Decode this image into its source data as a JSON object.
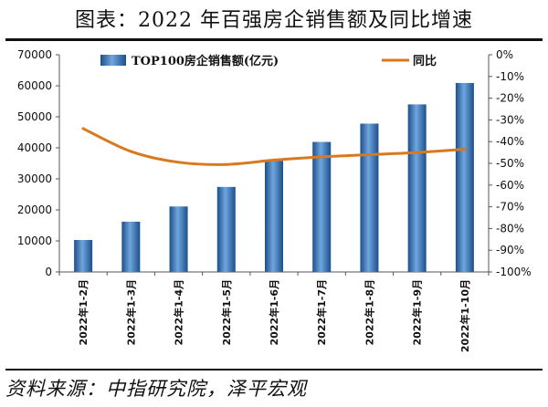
{
  "header": {
    "title": "图表：2022 年百强房企销售额及同比增速"
  },
  "footer": {
    "source": "资料来源：中指研究院，泽平宏观"
  },
  "chart_data": {
    "type": "bar",
    "categories": [
      "2022年1-2月",
      "2022年1-3月",
      "2022年1-4月",
      "2022年1-5月",
      "2022年1-6月",
      "2022年1-7月",
      "2022年1-8月",
      "2022年1-9月",
      "2022年1-10月"
    ],
    "series": [
      {
        "name": "TOP100房企销售额(亿元)",
        "type": "bar",
        "axis": "left",
        "color": "#3a78c0",
        "values": [
          10300,
          16200,
          21100,
          27400,
          35800,
          41900,
          47800,
          54000,
          60900
        ]
      },
      {
        "name": "同比",
        "type": "line",
        "axis": "right",
        "color": "#d9791f",
        "values": [
          -34,
          -44.5,
          -49.5,
          -50.5,
          -48.5,
          -47,
          -46,
          -45,
          -43.5
        ]
      }
    ],
    "ylim_left": [
      0,
      70000
    ],
    "yticks_left": [
      "0",
      "10000",
      "20000",
      "30000",
      "40000",
      "50000",
      "60000",
      "70000"
    ],
    "ylim_right": [
      -100,
      0
    ],
    "yticks_right": [
      "0%",
      "-10%",
      "-20%",
      "-30%",
      "-40%",
      "-50%",
      "-60%",
      "-70%",
      "-80%",
      "-90%",
      "-100%"
    ],
    "legend": "top",
    "grid": false
  }
}
